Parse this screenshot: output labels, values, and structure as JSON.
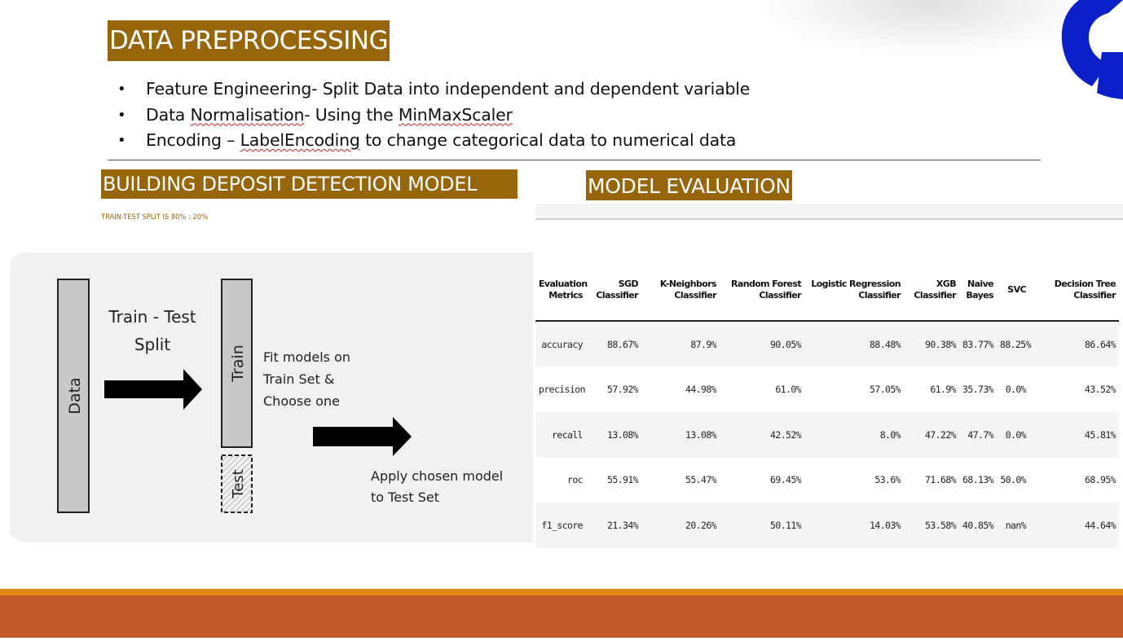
{
  "colors": {
    "heading_bg": "#98660a",
    "footer_orange": "#e48a15",
    "footer_rust": "#c0582a",
    "logo_blue": "#0a1fc8"
  },
  "icons": {
    "logo": "circular-segment-logo"
  },
  "headings": {
    "data_preprocessing": "DATA PREPROCESSING",
    "building_model": "BUILDING DEPOSIT DETECTION MODEL",
    "model_evaluation": "MODEL EVALUATION"
  },
  "bullets": [
    {
      "prefix": "Feature Engineering- Split Data into independent and dependent variable",
      "mark": "",
      "suffix": ""
    },
    {
      "prefix": "Data ",
      "mark": "Normalisation",
      "middle": "- Using the ",
      "mark2": "MinMaxScaler",
      "suffix": ""
    },
    {
      "prefix": "Encoding – ",
      "mark": "LabelEncoding",
      "suffix": " to change categorical data to numerical data"
    }
  ],
  "split_note": "TRAIN-TEST SPLIT IS 80% : 20%",
  "diagram": {
    "data_label": "Data",
    "split_label_1": "Train - Test",
    "split_label_2": "Split",
    "train_label": "Train",
    "test_label": "Test",
    "fit_line_1": "Fit models on",
    "fit_line_2": "Train Set &",
    "fit_line_3": "Choose one",
    "apply_line_1": "Apply chosen model",
    "apply_line_2": "to Test Set"
  },
  "table": {
    "headers": [
      [
        "Evaluation",
        "Metrics"
      ],
      [
        "SGD",
        "Classifier"
      ],
      [
        "K-Neighbors",
        "Classifier"
      ],
      [
        "Random Forest",
        "Classifier"
      ],
      [
        "Logistic Regression",
        "Classifier"
      ],
      [
        "XGB",
        "Classifier"
      ],
      [
        "Naive",
        "Bayes"
      ],
      [
        "SVC",
        ""
      ],
      [
        "Decision Tree",
        "Classifier"
      ]
    ],
    "rows": [
      [
        "accuracy",
        "88.67%",
        "87.9%",
        "90.05%",
        "88.48%",
        "90.38%",
        "83.77%",
        "88.25%",
        "86.64%"
      ],
      [
        "precision",
        "57.92%",
        "44.98%",
        "61.0%",
        "57.05%",
        "61.9%",
        "35.73%",
        "0.0%",
        "43.52%"
      ],
      [
        "recall",
        "13.08%",
        "13.08%",
        "42.52%",
        "8.0%",
        "47.22%",
        "47.7%",
        "0.0%",
        "45.81%"
      ],
      [
        "roc",
        "55.91%",
        "55.47%",
        "69.45%",
        "53.6%",
        "71.68%",
        "68.13%",
        "50.0%",
        "68.95%"
      ],
      [
        "f1_score",
        "21.34%",
        "20.26%",
        "50.11%",
        "14.03%",
        "53.58%",
        "40.85%",
        "nan%",
        "44.64%"
      ]
    ]
  }
}
